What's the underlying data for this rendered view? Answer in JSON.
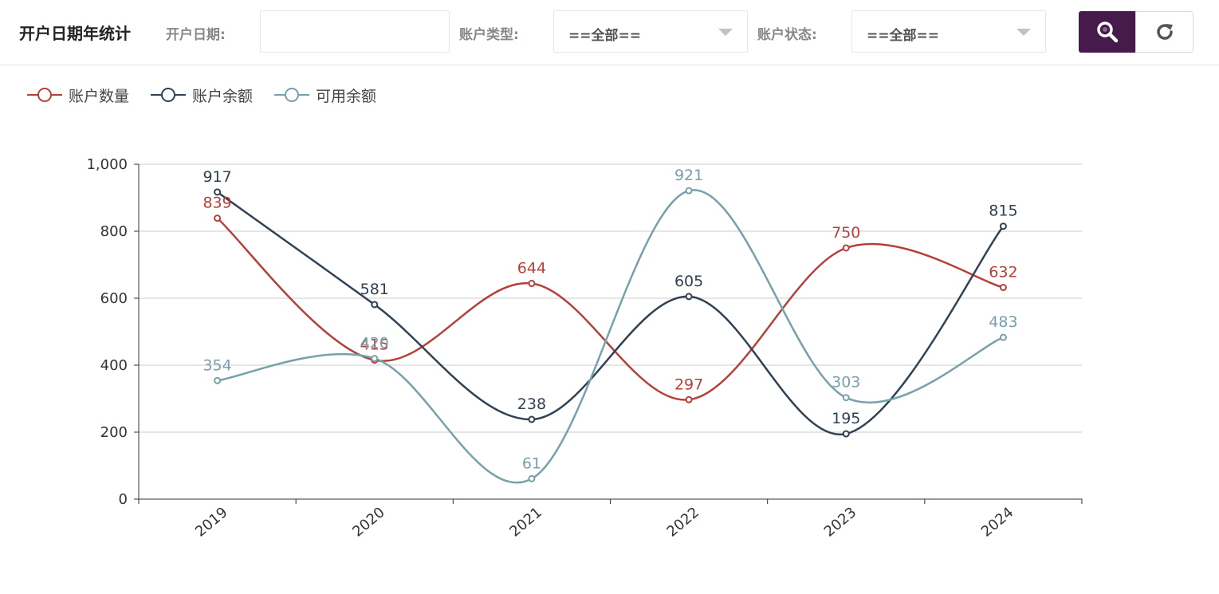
{
  "header": {
    "title": "开户日期年统计",
    "date_label": "开户日期:",
    "date_value": "",
    "account_type_label": "账户类型:",
    "account_type_value": "==全部==",
    "account_status_label": "账户状态:",
    "account_status_value": "==全部==",
    "search_icon": "search-icon",
    "refresh_icon": "refresh-icon",
    "search_color": "#461a4a"
  },
  "chart_data": {
    "type": "line",
    "smooth": true,
    "categories": [
      "2019",
      "2020",
      "2021",
      "2022",
      "2023",
      "2024"
    ],
    "ylim": [
      0,
      1000
    ],
    "yticks": [
      0,
      200,
      400,
      600,
      800,
      1000
    ],
    "ytick_labels": [
      "0",
      "200",
      "400",
      "600",
      "800",
      "1,000"
    ],
    "grid": true,
    "legend_position": "top-left",
    "series": [
      {
        "name": "账户数量",
        "color": "#b5403a",
        "values": [
          839,
          415,
          644,
          297,
          750,
          632
        ]
      },
      {
        "name": "账户余额",
        "color": "#2f4154",
        "values": [
          917,
          581,
          238,
          605,
          195,
          815
        ]
      },
      {
        "name": "可用余额",
        "color": "#76a0aa",
        "values": [
          354,
          420,
          61,
          921,
          303,
          483
        ]
      }
    ]
  }
}
